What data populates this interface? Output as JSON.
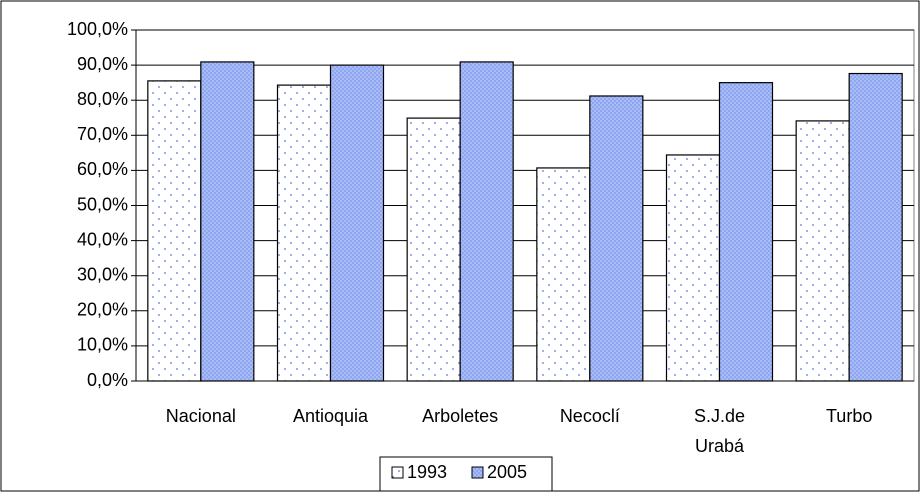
{
  "chart_data": {
    "type": "bar",
    "categories": [
      "Nacional",
      "Antioquia",
      "Arboletes",
      "Necoclí",
      "S.J.de Urabá",
      "Turbo"
    ],
    "series": [
      {
        "name": "1993",
        "color": "#ffffff",
        "values": [
          85.5,
          84.3,
          74.9,
          60.7,
          64.4,
          74.1
        ]
      },
      {
        "name": "2005",
        "color": "#8ea6f0",
        "values": [
          90.9,
          90.0,
          90.9,
          81.2,
          85.0,
          87.6
        ]
      }
    ],
    "ylim": [
      0,
      100
    ],
    "yticks": [
      {
        "value": 0,
        "label": "0,0%"
      },
      {
        "value": 10,
        "label": "10,0%"
      },
      {
        "value": 20,
        "label": "20,0%"
      },
      {
        "value": 30,
        "label": "30,0%"
      },
      {
        "value": 40,
        "label": "40,0%"
      },
      {
        "value": 50,
        "label": "50,0%"
      },
      {
        "value": 60,
        "label": "60,0%"
      },
      {
        "value": 70,
        "label": "70,0%"
      },
      {
        "value": 80,
        "label": "80,0%"
      },
      {
        "value": 90,
        "label": "90,0%"
      },
      {
        "value": 100,
        "label": "100,0%"
      }
    ],
    "grid": true,
    "legend": "bottom"
  }
}
